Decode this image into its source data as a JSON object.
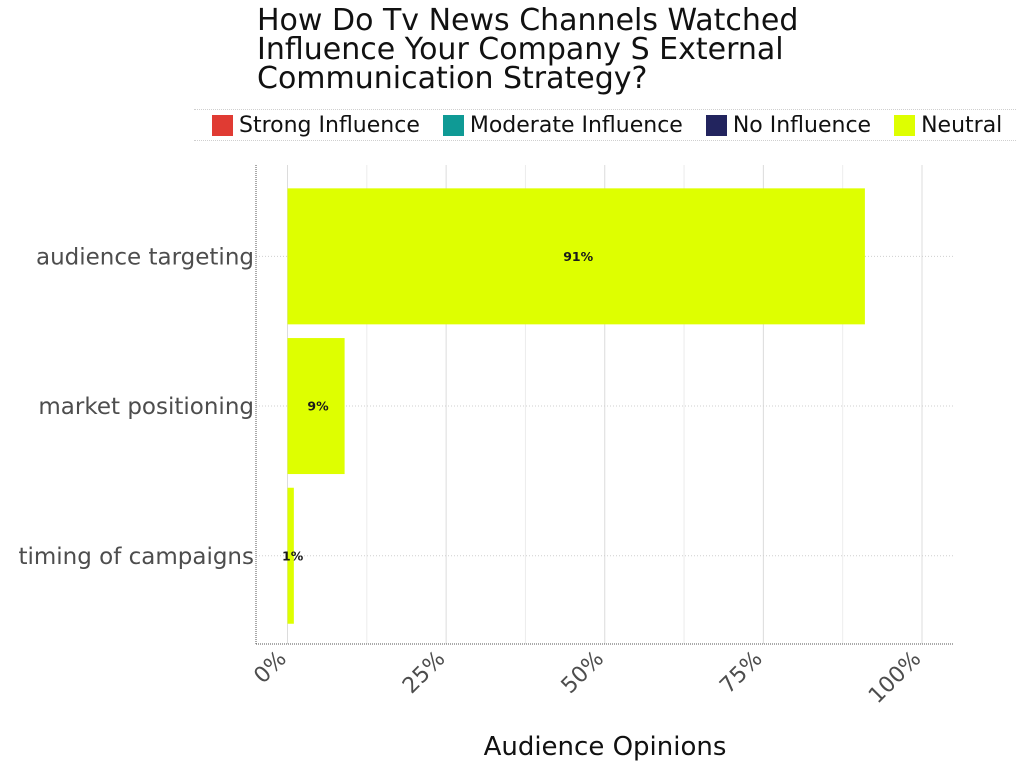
{
  "chart_data": {
    "type": "bar",
    "orientation": "horizontal",
    "title_lines": [
      "How Do Tv News Channels Watched",
      "Influence Your Company S External",
      "Communication Strategy?"
    ],
    "xlabel": "Audience Opinions",
    "ylabel": "",
    "categories": [
      "audience targeting",
      "market positioning",
      "timing of campaigns"
    ],
    "series": [
      {
        "name": "Strong Influence",
        "color": "#e03b33",
        "values": [
          0,
          0,
          0
        ]
      },
      {
        "name": "Moderate Influence",
        "color": "#0f9a95",
        "values": [
          0,
          0,
          0
        ]
      },
      {
        "name": "No Influence",
        "color": "#22245e",
        "values": [
          0,
          0,
          0
        ]
      },
      {
        "name": "Neutral",
        "color": "#deff00",
        "values": [
          91,
          9,
          1
        ]
      }
    ],
    "data_labels": [
      "91%",
      "9%",
      "1%"
    ],
    "xlim": [
      0,
      100
    ],
    "x_ticks": [
      0,
      25,
      50,
      75,
      100
    ],
    "x_tick_labels": [
      "0%",
      "25%",
      "50%",
      "75%",
      "100%"
    ],
    "grid": true,
    "legend_position": "top"
  }
}
